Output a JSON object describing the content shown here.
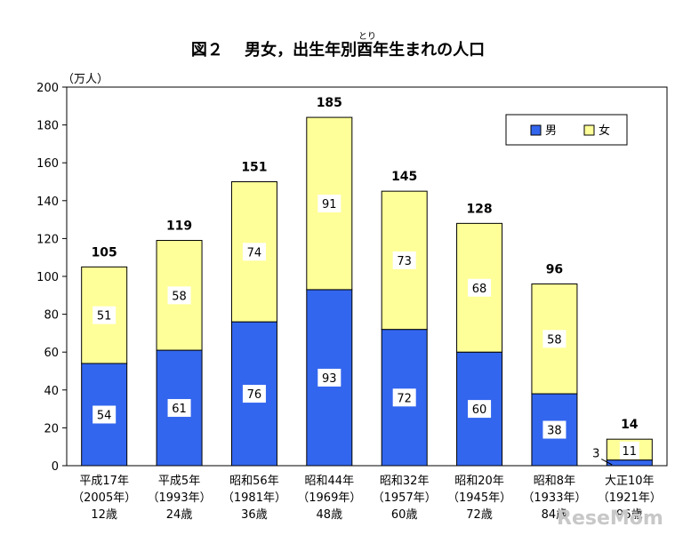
{
  "title": {
    "prefix": "図２　 男女，出生年別",
    "kanji": "酉",
    "suffix": "年生まれの人口",
    "ruby": "とり"
  },
  "watermark": "ReseMom",
  "colors": {
    "male": "#3366ee",
    "female": "#ffff99",
    "axis": "#000000",
    "text": "#000000"
  },
  "chart_data": {
    "type": "bar",
    "stacked": true,
    "ylabel": "（万人）",
    "ylim": [
      0,
      200
    ],
    "yticks": [
      0,
      20,
      40,
      60,
      80,
      100,
      120,
      140,
      160,
      180,
      200
    ],
    "legend": {
      "placement": "top-right"
    },
    "grid": false,
    "categories": [
      [
        "平成17年",
        "（2005年）",
        "12歳"
      ],
      [
        "平成5年",
        "（1993年）",
        "24歳"
      ],
      [
        "昭和56年",
        "（1981年）",
        "36歳"
      ],
      [
        "昭和44年",
        "（1969年）",
        "48歳"
      ],
      [
        "昭和32年",
        "（1957年）",
        "60歳"
      ],
      [
        "昭和20年",
        "（1945年）",
        "72歳"
      ],
      [
        "昭和8年",
        "（1933年）",
        "84歳"
      ],
      [
        "大正10年",
        "（1921年）",
        "96歳"
      ]
    ],
    "series": [
      {
        "name": "男",
        "color": "#3366ee",
        "values": [
          54,
          61,
          76,
          93,
          72,
          60,
          38,
          3
        ]
      },
      {
        "name": "女",
        "color": "#ffff99",
        "values": [
          51,
          58,
          74,
          91,
          73,
          68,
          58,
          11
        ]
      }
    ],
    "totals": [
      105,
      119,
      151,
      185,
      145,
      128,
      96,
      14
    ]
  }
}
